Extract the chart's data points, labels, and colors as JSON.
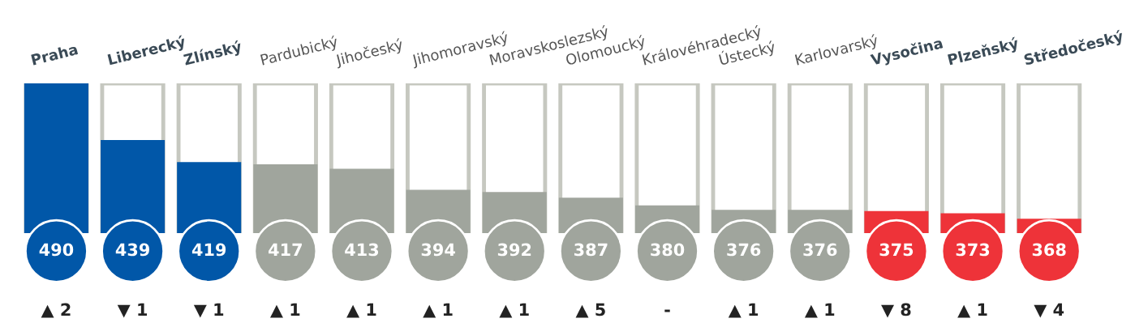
{
  "chart_data": {
    "type": "bar",
    "categories": [
      "Praha",
      "Liberecký",
      "Zlínský",
      "Pardubický",
      "Jihočeský",
      "Jihomoravský",
      "Moravskoslezský",
      "Olomoucký",
      "Královéhradecký",
      "Ústecký",
      "Karlovarský",
      "Vysočina",
      "Plzeňský",
      "Středočeský"
    ],
    "values": [
      490,
      439,
      419,
      417,
      413,
      394,
      392,
      387,
      380,
      376,
      376,
      375,
      373,
      368
    ],
    "colors": [
      "#0157a8",
      "#0157a8",
      "#0157a8",
      "#a0a59d",
      "#a0a59d",
      "#a0a59d",
      "#a0a59d",
      "#a0a59d",
      "#a0a59d",
      "#a0a59d",
      "#a0a59d",
      "#ee3339",
      "#ee3339",
      "#ee3339"
    ],
    "ylim": [
      355,
      490
    ],
    "data_labels": true,
    "annotations": [
      "▲ 2",
      "▼ 1",
      "▼ 1",
      "▲ 1",
      "▲ 1",
      "▲ 1",
      "▲ 1",
      "▲ 5",
      "-",
      "▲ 1",
      "▲ 1",
      "▼ 8",
      "▲ 1",
      "▼ 4"
    ]
  }
}
